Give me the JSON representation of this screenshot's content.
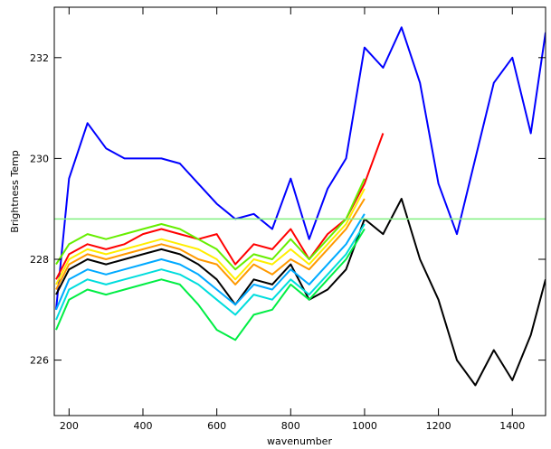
{
  "chart_data": {
    "type": "line",
    "title": "",
    "xlabel": "wavenumber",
    "ylabel": "Brightness Temp",
    "xlim": [
      160,
      1490
    ],
    "ylim": [
      224.9,
      233.0
    ],
    "xticks": [
      200,
      400,
      600,
      800,
      1000,
      1200,
      1400
    ],
    "yticks": [
      226,
      228,
      230,
      232
    ],
    "grid": false,
    "legend": "none",
    "reference_line": {
      "y": 228.8,
      "color": "#80f080"
    },
    "series": [
      {
        "color": "#0000ff",
        "x": [
          165,
          200,
          250,
          300,
          350,
          400,
          450,
          500,
          550,
          600,
          650,
          700,
          750,
          800,
          850,
          900,
          950,
          1000,
          1050,
          1100,
          1150,
          1200,
          1250,
          1300,
          1350,
          1400,
          1450,
          1490
        ],
        "y": [
          227.0,
          229.6,
          230.7,
          230.2,
          230.0,
          230.0,
          230.0,
          229.9,
          229.5,
          229.1,
          228.8,
          228.9,
          228.6,
          229.6,
          228.4,
          229.4,
          230.0,
          232.2,
          231.8,
          232.6,
          231.5,
          229.5,
          228.5,
          230.0,
          231.5,
          232.0,
          230.5,
          232.5
        ]
      },
      {
        "color": "#ff0000",
        "x": [
          165,
          200,
          250,
          300,
          350,
          400,
          450,
          500,
          550,
          600,
          650,
          700,
          750,
          800,
          850,
          900,
          950,
          1000,
          1050
        ],
        "y": [
          227.6,
          228.1,
          228.3,
          228.2,
          228.3,
          228.5,
          228.6,
          228.5,
          228.4,
          228.5,
          227.9,
          228.3,
          228.2,
          228.6,
          228.0,
          228.5,
          228.8,
          229.5,
          230.5
        ]
      },
      {
        "color": "#ff9900",
        "x": [
          165,
          200,
          250,
          300,
          350,
          400,
          450,
          500,
          550,
          600,
          650,
          700,
          750,
          800,
          850,
          900,
          950,
          1000
        ],
        "y": [
          227.4,
          227.9,
          228.1,
          228.0,
          228.1,
          228.2,
          228.3,
          228.2,
          228.0,
          227.9,
          227.5,
          227.9,
          227.7,
          228.0,
          227.8,
          228.2,
          228.6,
          229.2
        ]
      },
      {
        "color": "#ffee00",
        "x": [
          165,
          200,
          250,
          300,
          350,
          400,
          450,
          500,
          550,
          600,
          650,
          700,
          750,
          800,
          850,
          900,
          950,
          1000
        ],
        "y": [
          227.5,
          228.0,
          228.2,
          228.1,
          228.2,
          228.3,
          228.4,
          228.3,
          228.2,
          228.0,
          227.6,
          228.0,
          227.9,
          228.2,
          227.9,
          228.3,
          228.7,
          229.4
        ]
      },
      {
        "color": "#66ee00",
        "x": [
          165,
          200,
          250,
          300,
          350,
          400,
          450,
          500,
          550,
          600,
          650,
          700,
          750,
          800,
          850,
          900,
          950,
          1000
        ],
        "y": [
          227.9,
          228.3,
          228.5,
          228.4,
          228.5,
          228.6,
          228.7,
          228.6,
          228.4,
          228.2,
          227.8,
          228.1,
          228.0,
          228.4,
          228.0,
          228.4,
          228.8,
          229.6
        ]
      },
      {
        "color": "#000000",
        "x": [
          165,
          200,
          250,
          300,
          350,
          400,
          450,
          500,
          550,
          600,
          650,
          700,
          750,
          800,
          850,
          900,
          950,
          1000,
          1050,
          1100,
          1150,
          1200,
          1250,
          1300,
          1350,
          1400,
          1450,
          1490
        ],
        "y": [
          227.3,
          227.8,
          228.0,
          227.9,
          228.0,
          228.1,
          228.2,
          228.1,
          227.9,
          227.6,
          227.1,
          227.6,
          227.5,
          227.9,
          227.2,
          227.4,
          227.8,
          228.8,
          228.5,
          229.2,
          228.0,
          227.2,
          226.0,
          225.5,
          226.2,
          225.6,
          226.5,
          227.6
        ]
      },
      {
        "color": "#00aaff",
        "x": [
          165,
          200,
          250,
          300,
          350,
          400,
          450,
          500,
          550,
          600,
          650,
          700,
          750,
          800,
          850,
          900,
          950,
          1000
        ],
        "y": [
          227.0,
          227.6,
          227.8,
          227.7,
          227.8,
          227.9,
          228.0,
          227.9,
          227.7,
          227.4,
          227.1,
          227.5,
          227.4,
          227.8,
          227.5,
          227.9,
          228.3,
          228.9
        ]
      },
      {
        "color": "#00dddd",
        "x": [
          165,
          200,
          250,
          300,
          350,
          400,
          450,
          500,
          550,
          600,
          650,
          700,
          750,
          800,
          850,
          900,
          950,
          1000
        ],
        "y": [
          226.8,
          227.4,
          227.6,
          227.5,
          227.6,
          227.7,
          227.8,
          227.7,
          227.5,
          227.2,
          226.9,
          227.3,
          227.2,
          227.6,
          227.3,
          227.7,
          228.1,
          228.7
        ]
      },
      {
        "color": "#00ee44",
        "x": [
          165,
          200,
          250,
          300,
          350,
          400,
          450,
          500,
          550,
          600,
          650,
          700,
          750,
          800,
          850,
          900,
          950,
          1000
        ],
        "y": [
          226.6,
          227.2,
          227.4,
          227.3,
          227.4,
          227.5,
          227.6,
          227.5,
          227.1,
          226.6,
          226.4,
          226.9,
          227.0,
          227.5,
          227.2,
          227.6,
          228.0,
          228.6
        ]
      }
    ]
  }
}
